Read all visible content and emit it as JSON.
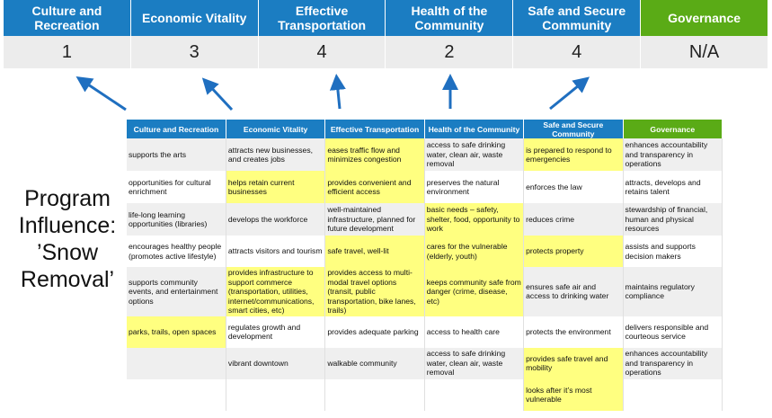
{
  "top": {
    "columns": [
      {
        "label": "Culture and Recreation",
        "score": "1",
        "color": "#1b7dc2"
      },
      {
        "label": "Economic Vitality",
        "score": "3",
        "color": "#1b7dc2"
      },
      {
        "label": "Effective Transportation",
        "score": "4",
        "color": "#1b7dc2"
      },
      {
        "label": "Health of the Community",
        "score": "2",
        "color": "#1b7dc2"
      },
      {
        "label": "Safe and Secure Community",
        "score": "4",
        "color": "#1b7dc2"
      },
      {
        "label": "Governance",
        "score": "N/A",
        "color": "#5aab16"
      }
    ]
  },
  "side_label": "Program Influence: ’Snow Removal’",
  "table": {
    "headers": [
      "Culture and Recreation",
      "Economic Vitality",
      "Effective Transportation",
      "Health of the Community",
      "Safe and Secure Community",
      "Governance"
    ],
    "highlight_color": "#ffff80",
    "rows": [
      [
        {
          "t": "supports the arts"
        },
        {
          "t": "attracts new businesses, and creates jobs"
        },
        {
          "t": "eases traffic flow and minimizes congestion",
          "h": true
        },
        {
          "t": "access to safe drinking water, clean air, waste removal"
        },
        {
          "t": "is prepared to respond to emergencies",
          "h": true
        },
        {
          "t": "enhances accountability and transparency in operations"
        }
      ],
      [
        {
          "t": "opportunities for cultural enrichment"
        },
        {
          "t": "helps retain current businesses",
          "h": true
        },
        {
          "t": "provides convenient and efficient access",
          "h": true
        },
        {
          "t": "preserves the natural environment"
        },
        {
          "t": "enforces the law"
        },
        {
          "t": "attracts, develops and retains talent"
        }
      ],
      [
        {
          "t": "life-long learning opportunities (libraries)"
        },
        {
          "t": "develops the workforce"
        },
        {
          "t": "well-maintained infrastructure, planned for future development"
        },
        {
          "t": "basic needs – safety, shelter, food, opportunity to work",
          "h": true
        },
        {
          "t": "reduces crime"
        },
        {
          "t": "stewardship of financial, human and physical resources"
        }
      ],
      [
        {
          "t": "encourages healthy people (promotes active lifestyle)"
        },
        {
          "t": "attracts visitors and tourism"
        },
        {
          "t": "safe travel, well-lit",
          "h": true
        },
        {
          "t": "cares for the vulnerable (elderly, youth)",
          "h": true
        },
        {
          "t": "protects property",
          "h": true
        },
        {
          "t": "assists and supports decision makers"
        }
      ],
      [
        {
          "t": "supports community events, and entertainment options"
        },
        {
          "t": "provides infrastructure to support commerce (transportation, utilities, internet/communications, smart cities, etc)",
          "h": true
        },
        {
          "t": "provides access to multi-modal travel options (transit, public transportation, bike lanes, trails)",
          "h": true
        },
        {
          "t": "keeps community safe from danger (crime, disease, etc)",
          "h": true
        },
        {
          "t": "ensures safe air and access to drinking water"
        },
        {
          "t": "maintains regulatory compliance"
        }
      ],
      [
        {
          "t": "parks, trails, open spaces",
          "h": true
        },
        {
          "t": "regulates growth and development"
        },
        {
          "t": "provides adequate parking"
        },
        {
          "t": "access to health care"
        },
        {
          "t": "protects the environment"
        },
        {
          "t": "delivers responsible and courteous service"
        }
      ],
      [
        {
          "t": ""
        },
        {
          "t": "vibrant downtown"
        },
        {
          "t": "walkable community"
        },
        {
          "t": "access to safe drinking water, clean air, waste removal"
        },
        {
          "t": "provides safe travel and mobility",
          "h": true
        },
        {
          "t": "enhances accountability and transparency in operations"
        }
      ],
      [
        {
          "t": ""
        },
        {
          "t": ""
        },
        {
          "t": ""
        },
        {
          "t": ""
        },
        {
          "t": "looks after it’s most vulnerable",
          "h": true
        },
        {
          "t": ""
        }
      ]
    ]
  },
  "arrow_color": "#1f6fc0"
}
